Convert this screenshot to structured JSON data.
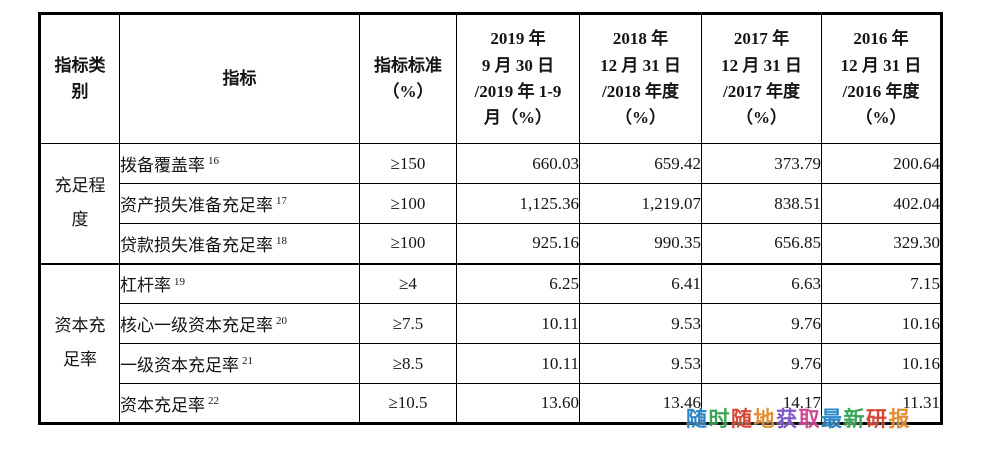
{
  "table": {
    "columns": [
      {
        "lines": [
          "指标类",
          "别"
        ]
      },
      {
        "lines": [
          "指标"
        ]
      },
      {
        "lines": [
          "指标标准",
          "（%）"
        ]
      },
      {
        "lines": [
          "2019 年",
          "9 月 30 日",
          "/2019 年 1-9",
          "月（%）"
        ]
      },
      {
        "lines": [
          "2018 年",
          "12 月 31 日",
          "/2018 年度",
          "（%）"
        ]
      },
      {
        "lines": [
          "2017 年",
          "12 月 31 日",
          "/2017 年度",
          "（%）"
        ]
      },
      {
        "lines": [
          "2016 年",
          "12 月 31 日",
          "/2016 年度",
          "（%）"
        ]
      }
    ],
    "groups": [
      {
        "category_lines": [
          "充足程",
          "度"
        ],
        "rows": [
          {
            "indicator": "拨备覆盖率",
            "footnote": "16",
            "standard": "≥150",
            "values": [
              "660.03",
              "659.42",
              "373.79",
              "200.64"
            ]
          },
          {
            "indicator": "资产损失准备充足率",
            "footnote": "17",
            "standard": "≥100",
            "values": [
              "1,125.36",
              "1,219.07",
              "838.51",
              "402.04"
            ]
          },
          {
            "indicator": "贷款损失准备充足率",
            "footnote": "18",
            "standard": "≥100",
            "values": [
              "925.16",
              "990.35",
              "656.85",
              "329.30"
            ]
          }
        ]
      },
      {
        "category_lines": [
          "资本充",
          "足率"
        ],
        "rows": [
          {
            "indicator": "杠杆率",
            "footnote": "19",
            "standard": "≥4",
            "values": [
              "6.25",
              "6.41",
              "6.63",
              "7.15"
            ]
          },
          {
            "indicator": "核心一级资本充足率",
            "footnote": "20",
            "standard": "≥7.5",
            "values": [
              "10.11",
              "9.53",
              "9.76",
              "10.16"
            ]
          },
          {
            "indicator": "一级资本充足率",
            "footnote": "21",
            "standard": "≥8.5",
            "values": [
              "10.11",
              "9.53",
              "9.76",
              "10.16"
            ]
          },
          {
            "indicator": "资本充足率",
            "footnote": "22",
            "standard": "≥10.5",
            "values": [
              "13.60",
              "13.46",
              "14.17",
              "11.31"
            ]
          }
        ]
      }
    ]
  },
  "watermark": {
    "chars": [
      {
        "ch": "随",
        "color": "#1f7ec2"
      },
      {
        "ch": "时",
        "color": "#2fa14d"
      },
      {
        "ch": "随",
        "color": "#d43d2a"
      },
      {
        "ch": "地",
        "color": "#e0882b"
      },
      {
        "ch": "获",
        "color": "#7a52c7"
      },
      {
        "ch": "取",
        "color": "#cc3f8e"
      },
      {
        "ch": "最",
        "color": "#1f7ec2"
      },
      {
        "ch": "新",
        "color": "#2fa14d"
      },
      {
        "ch": "研",
        "color": "#d43d2a"
      },
      {
        "ch": "报",
        "color": "#e0882b"
      }
    ]
  }
}
